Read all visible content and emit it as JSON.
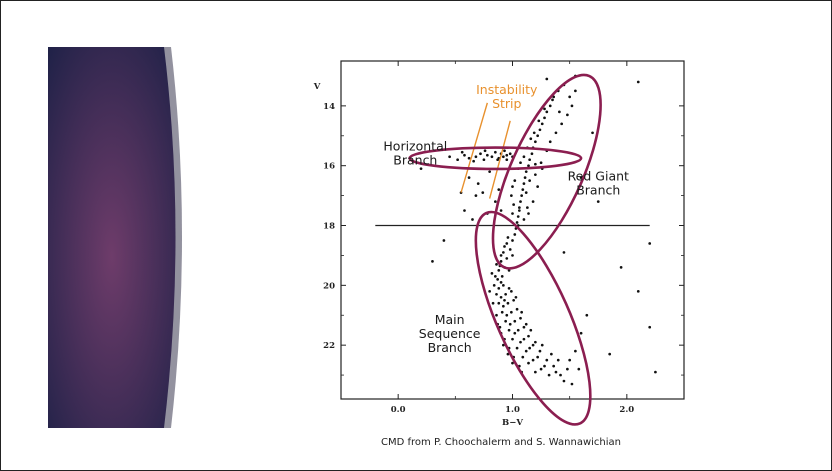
{
  "colors": {
    "slide_panel_top": "#1e2147",
    "slide_panel_mid": "#6e3c6a",
    "slide_panel_bottom": "#232250",
    "ellipse": "#8b1e50",
    "instability": "#e8912e",
    "stars": "#111111"
  },
  "caption": "CMD from P. Choochalerm and S. Wannawichian",
  "chart_data": {
    "type": "scatter",
    "title": "",
    "xlabel": "B−V",
    "ylabel": "V",
    "xlim": [
      -0.5,
      2.5
    ],
    "ylim": [
      23.8,
      12.5
    ],
    "y_inverted": true,
    "xticks": [
      0.0,
      1.0,
      2.0
    ],
    "xtick_labels": [
      "0.0",
      "1.0",
      "2.0"
    ],
    "yticks": [
      14,
      16,
      18,
      20,
      22
    ],
    "ytick_labels": [
      "14",
      "16",
      "18",
      "20",
      "22"
    ],
    "grid": false,
    "legend": "none",
    "reference_lines": [
      {
        "type": "horizontal",
        "y": 18.0,
        "x_from": -0.2,
        "x_to": 2.2
      }
    ],
    "annotations": [
      {
        "lines": [
          "Horizontal",
          "Branch"
        ],
        "color": "#1a1a1a",
        "anchor": [
          0.15,
          15.5
        ]
      },
      {
        "lines": [
          "Instability",
          "Strip"
        ],
        "color": "#e8912e",
        "anchor": [
          0.95,
          13.6
        ]
      },
      {
        "lines": [
          "Red Giant",
          "Branch"
        ],
        "color": "#1a1a1a",
        "anchor": [
          1.75,
          16.5
        ]
      },
      {
        "lines": [
          "Main",
          "Sequence",
          "Branch"
        ],
        "color": "#1a1a1a",
        "anchor": [
          0.45,
          21.3
        ]
      }
    ],
    "regions": [
      {
        "name": "Horizontal Branch",
        "center": [
          0.85,
          15.75
        ],
        "rx": 0.75,
        "ry": 0.65,
        "angle": 0
      },
      {
        "name": "Red Giant Branch",
        "center": [
          1.3,
          16.2
        ],
        "rx": 0.75,
        "ry": 3.5,
        "angle": 24
      },
      {
        "name": "Main Sequence Branch",
        "center": [
          1.18,
          21.1
        ],
        "rx": 0.75,
        "ry": 3.85,
        "angle": -24
      }
    ],
    "instability_strip": [
      {
        "x1": 0.78,
        "y1": 13.9,
        "x2": 0.55,
        "y2": 16.9
      },
      {
        "x1": 0.98,
        "y1": 14.5,
        "x2": 0.8,
        "y2": 17.1
      }
    ],
    "points": [
      [
        0.45,
        15.7
      ],
      [
        0.52,
        15.8
      ],
      [
        0.58,
        15.65
      ],
      [
        0.62,
        15.75
      ],
      [
        0.68,
        15.7
      ],
      [
        0.72,
        15.6
      ],
      [
        0.75,
        15.8
      ],
      [
        0.78,
        15.65
      ],
      [
        0.82,
        15.7
      ],
      [
        0.85,
        15.55
      ],
      [
        0.88,
        15.75
      ],
      [
        0.9,
        15.6
      ],
      [
        0.92,
        15.7
      ],
      [
        0.95,
        15.65
      ],
      [
        0.98,
        15.6
      ],
      [
        1.0,
        15.7
      ],
      [
        0.87,
        15.8
      ],
      [
        0.93,
        15.5
      ],
      [
        0.76,
        15.5
      ],
      [
        0.66,
        15.85
      ],
      [
        0.56,
        15.55
      ],
      [
        0.95,
        15.8
      ],
      [
        0.55,
        16.9
      ],
      [
        0.62,
        16.4
      ],
      [
        0.7,
        16.6
      ],
      [
        0.8,
        16.2
      ],
      [
        0.68,
        17.0
      ],
      [
        0.74,
        16.9
      ],
      [
        0.85,
        17.2
      ],
      [
        0.58,
        17.5
      ],
      [
        0.78,
        17.6
      ],
      [
        0.65,
        17.8
      ],
      [
        0.9,
        17.5
      ],
      [
        0.88,
        16.8
      ],
      [
        1.02,
        18.3
      ],
      [
        1.04,
        17.9
      ],
      [
        1.06,
        17.4
      ],
      [
        1.08,
        17.0
      ],
      [
        1.1,
        16.6
      ],
      [
        1.12,
        16.2
      ],
      [
        1.15,
        15.8
      ],
      [
        1.18,
        15.4
      ],
      [
        1.22,
        15.0
      ],
      [
        1.26,
        14.6
      ],
      [
        1.3,
        14.2
      ],
      [
        1.35,
        13.8
      ],
      [
        1.4,
        13.5
      ],
      [
        1.03,
        18.1
      ],
      [
        1.05,
        17.7
      ],
      [
        1.07,
        17.2
      ],
      [
        1.09,
        16.8
      ],
      [
        1.11,
        16.4
      ],
      [
        1.14,
        16.0
      ],
      [
        1.17,
        15.6
      ],
      [
        1.2,
        15.2
      ],
      [
        1.24,
        14.8
      ],
      [
        1.28,
        14.4
      ],
      [
        1.33,
        14.0
      ],
      [
        1.0,
        17.6
      ],
      [
        1.01,
        17.3
      ],
      [
        0.99,
        17.0
      ],
      [
        1.0,
        16.7
      ],
      [
        1.02,
        16.5
      ],
      [
        1.05,
        16.1
      ],
      [
        1.07,
        15.9
      ],
      [
        1.1,
        15.7
      ],
      [
        1.13,
        15.4
      ],
      [
        1.16,
        15.1
      ],
      [
        1.19,
        14.9
      ],
      [
        1.23,
        14.5
      ],
      [
        1.28,
        14.1
      ],
      [
        1.36,
        13.7
      ],
      [
        1.45,
        13.3
      ],
      [
        1.55,
        13.0
      ],
      [
        1.2,
        16.3
      ],
      [
        1.25,
        15.9
      ],
      [
        1.3,
        15.5
      ],
      [
        1.33,
        15.2
      ],
      [
        1.38,
        14.9
      ],
      [
        1.43,
        14.6
      ],
      [
        1.48,
        14.3
      ],
      [
        1.52,
        14.0
      ],
      [
        1.22,
        16.7
      ],
      [
        1.18,
        17.2
      ],
      [
        1.13,
        17.4
      ],
      [
        1.1,
        17.8
      ],
      [
        1.14,
        17.6
      ],
      [
        1.26,
        16.1
      ],
      [
        1.41,
        14.2
      ],
      [
        1.5,
        13.7
      ],
      [
        1.2,
        15.95
      ],
      [
        1.15,
        16.5
      ],
      [
        1.12,
        16.9
      ],
      [
        1.06,
        17.5
      ],
      [
        1.05,
        18.0
      ],
      [
        1.3,
        13.1
      ],
      [
        1.55,
        13.5
      ],
      [
        1.7,
        14.9
      ],
      [
        2.1,
        13.2
      ],
      [
        1.6,
        16.4
      ],
      [
        1.75,
        17.2
      ],
      [
        2.2,
        18.6
      ],
      [
        0.4,
        18.5
      ],
      [
        2.1,
        20.2
      ],
      [
        2.2,
        21.4
      ],
      [
        1.95,
        19.4
      ],
      [
        0.2,
        16.1
      ],
      [
        1.85,
        22.3
      ],
      [
        2.25,
        22.9
      ],
      [
        1.45,
        18.9
      ],
      [
        0.3,
        19.2
      ],
      [
        0.95,
        18.6
      ],
      [
        0.92,
        18.9
      ],
      [
        0.9,
        19.2
      ],
      [
        0.88,
        19.5
      ],
      [
        0.87,
        19.8
      ],
      [
        0.88,
        20.1
      ],
      [
        0.9,
        20.4
      ],
      [
        0.92,
        20.7
      ],
      [
        0.95,
        21.0
      ],
      [
        0.98,
        21.3
      ],
      [
        1.02,
        21.6
      ],
      [
        1.07,
        21.9
      ],
      [
        1.12,
        22.2
      ],
      [
        1.18,
        22.5
      ],
      [
        1.25,
        22.8
      ],
      [
        1.32,
        23.0
      ],
      [
        0.98,
        18.8
      ],
      [
        0.95,
        19.1
      ],
      [
        0.93,
        19.4
      ],
      [
        0.91,
        19.7
      ],
      [
        0.92,
        20.0
      ],
      [
        0.94,
        20.3
      ],
      [
        0.96,
        20.6
      ],
      [
        0.99,
        20.9
      ],
      [
        1.02,
        21.2
      ],
      [
        1.05,
        21.5
      ],
      [
        1.1,
        21.8
      ],
      [
        1.15,
        22.1
      ],
      [
        1.22,
        22.4
      ],
      [
        1.28,
        22.7
      ],
      [
        1.38,
        22.9
      ],
      [
        1.45,
        23.2
      ],
      [
        0.86,
        19.3
      ],
      [
        0.85,
        19.7
      ],
      [
        0.84,
        20.0
      ],
      [
        0.86,
        20.3
      ],
      [
        0.88,
        20.6
      ],
      [
        0.91,
        20.9
      ],
      [
        0.94,
        21.2
      ],
      [
        0.97,
        21.5
      ],
      [
        1.0,
        21.8
      ],
      [
        1.04,
        22.1
      ],
      [
        1.09,
        22.4
      ],
      [
        1.14,
        22.6
      ],
      [
        1.2,
        22.9
      ],
      [
        1.0,
        19.0
      ],
      [
        0.97,
        19.5
      ],
      [
        0.99,
        20.2
      ],
      [
        1.01,
        20.5
      ],
      [
        1.04,
        20.8
      ],
      [
        1.07,
        21.1
      ],
      [
        1.1,
        21.4
      ],
      [
        1.14,
        21.7
      ],
      [
        1.18,
        22.0
      ],
      [
        1.24,
        22.2
      ],
      [
        1.3,
        22.5
      ],
      [
        1.36,
        22.7
      ],
      [
        1.42,
        23.0
      ],
      [
        0.82,
        19.6
      ],
      [
        0.8,
        20.2
      ],
      [
        0.83,
        20.6
      ],
      [
        0.86,
        21.0
      ],
      [
        0.89,
        21.4
      ],
      [
        0.93,
        21.8
      ],
      [
        0.97,
        22.1
      ],
      [
        1.01,
        22.4
      ],
      [
        1.06,
        22.7
      ],
      [
        1.5,
        22.5
      ],
      [
        1.55,
        22.2
      ],
      [
        1.6,
        21.6
      ],
      [
        1.65,
        21.0
      ],
      [
        1.58,
        22.8
      ],
      [
        0.96,
        18.4
      ],
      [
        1.0,
        18.5
      ],
      [
        0.93,
        18.7
      ],
      [
        0.9,
        19.0
      ],
      [
        0.89,
        19.35
      ],
      [
        0.9,
        19.9
      ],
      [
        0.93,
        20.5
      ],
      [
        0.97,
        20.1
      ],
      [
        1.03,
        20.4
      ],
      [
        1.08,
        20.9
      ],
      [
        1.12,
        21.3
      ],
      [
        1.16,
        21.5
      ],
      [
        1.2,
        21.9
      ],
      [
        1.26,
        22.0
      ],
      [
        1.34,
        22.3
      ],
      [
        1.4,
        22.5
      ],
      [
        1.48,
        22.8
      ],
      [
        1.52,
        23.3
      ],
      [
        1.08,
        22.9
      ],
      [
        1.0,
        22.6
      ],
      [
        0.96,
        22.3
      ],
      [
        0.92,
        22.0
      ],
      [
        0.9,
        21.6
      ],
      [
        0.87,
        21.3
      ]
    ]
  }
}
